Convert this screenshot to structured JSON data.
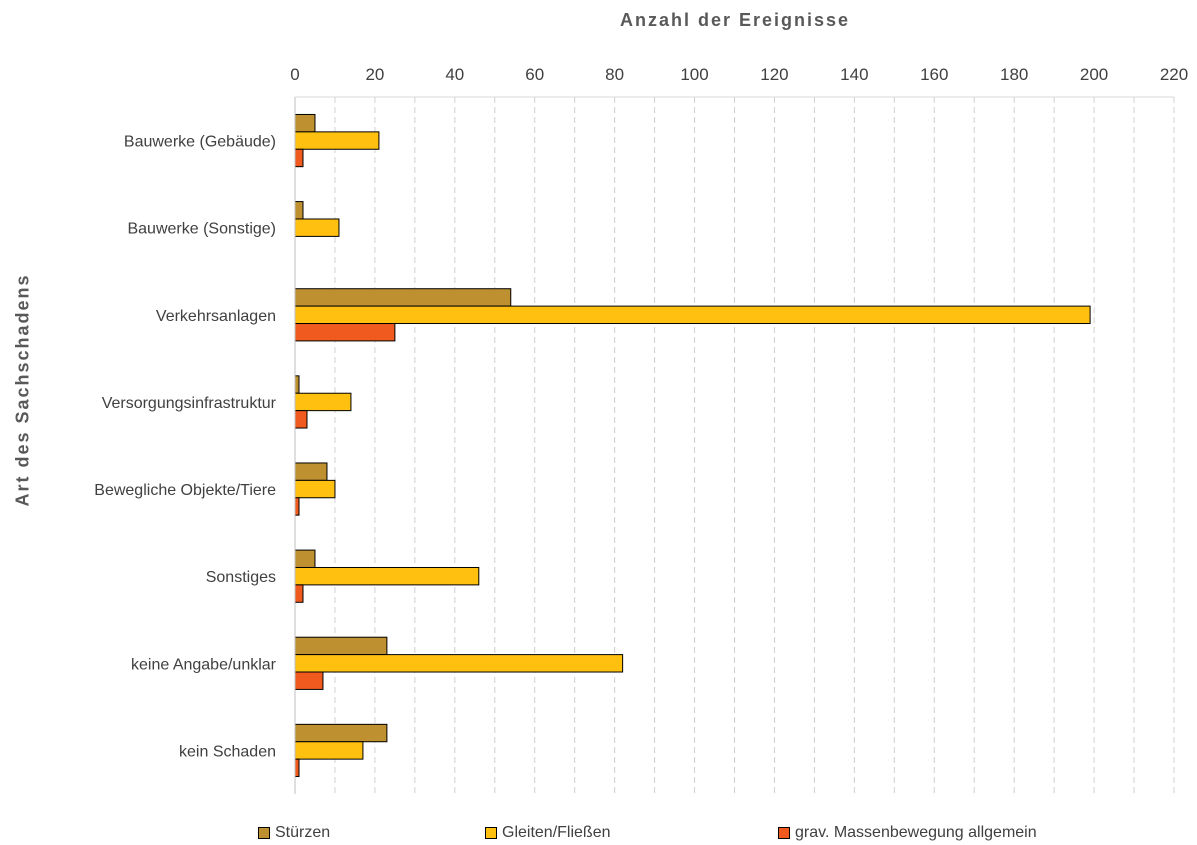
{
  "chart_data": {
    "type": "bar",
    "orientation": "horizontal",
    "xlabel": "Anzahl der Ereignisse",
    "ylabel": "Art des Sachschadens",
    "xlim": [
      0,
      220
    ],
    "x_ticks": [
      0,
      20,
      40,
      60,
      80,
      100,
      120,
      140,
      160,
      180,
      200,
      220
    ],
    "x_axis_position": "top",
    "grid": "vertical dashed",
    "legend_position": "bottom",
    "categories": [
      "Bauwerke (Gebäude)",
      "Bauwerke (Sonstige)",
      "Verkehrsanlagen",
      "Versorgungsinfrastruktur",
      "Bewegliche Objekte/Tiere",
      "Sonstiges",
      "keine Angabe/unklar",
      "kein Schaden"
    ],
    "series": [
      {
        "name": "Stürzen",
        "color": "#BF9030",
        "values": [
          5,
          2,
          54,
          1,
          8,
          5,
          23,
          23
        ]
      },
      {
        "name": "Gleiten/Fließen",
        "color": "#FFC010",
        "values": [
          21,
          11,
          199,
          14,
          10,
          46,
          82,
          17
        ]
      },
      {
        "name": "grav. Massenbewegung allgemein",
        "color": "#F05A1E",
        "values": [
          2,
          0,
          25,
          3,
          1,
          2,
          7,
          1
        ]
      }
    ]
  }
}
